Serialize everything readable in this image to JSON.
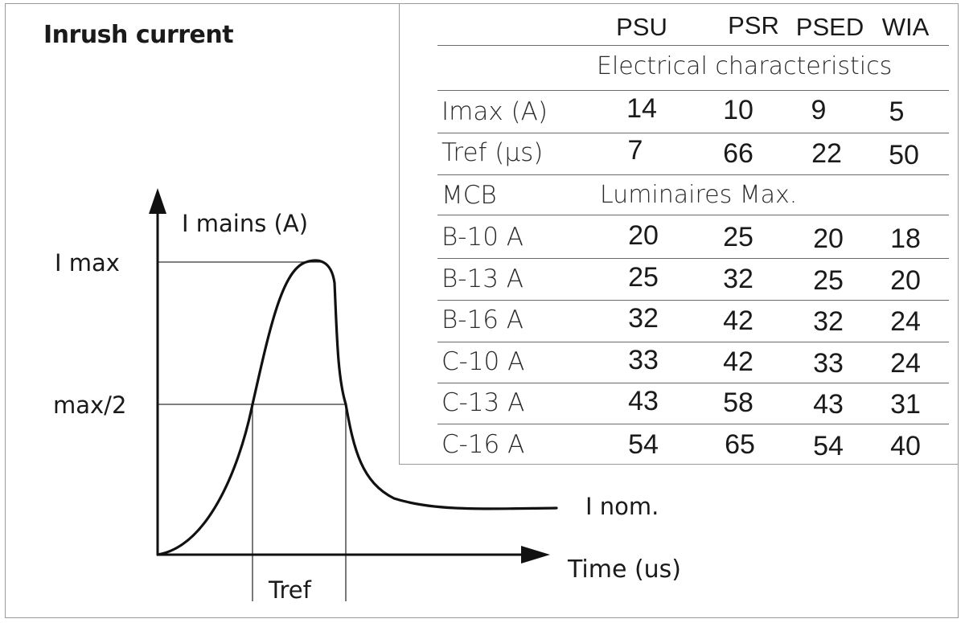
{
  "title": "Inrush current",
  "diagram": {
    "y_axis_label": "I mains (A)",
    "x_axis_label": "Time (us)",
    "imax_label": "I max",
    "half_label": "max/2",
    "nominal_label": "I nom.",
    "tref_label": "Tref"
  },
  "table": {
    "columns": [
      "PSU",
      "PSR",
      "PSED",
      "WIA"
    ],
    "section_electrical": "Electrical characteristics",
    "electrical_rows": [
      {
        "label": "Imax (A)",
        "values": [
          "14",
          "10",
          "9",
          "5"
        ]
      },
      {
        "label": "Tref (µs)",
        "values": [
          "7",
          "66",
          "22",
          "50"
        ]
      }
    ],
    "mcb_label": "MCB",
    "section_luminaires": "Luminaires Max.",
    "mcb_rows": [
      {
        "label": "B-10 A",
        "values": [
          "20",
          "25",
          "20",
          "18"
        ]
      },
      {
        "label": "B-13 A",
        "values": [
          "25",
          "32",
          "25",
          "20"
        ]
      },
      {
        "label": "B-16 A",
        "values": [
          "32",
          "42",
          "32",
          "24"
        ]
      },
      {
        "label": "C-10 A",
        "values": [
          "33",
          "42",
          "33",
          "24"
        ]
      },
      {
        "label": "C-13 A",
        "values": [
          "43",
          "58",
          "43",
          "31"
        ]
      },
      {
        "label": "C-16 A",
        "values": [
          "54",
          "65",
          "54",
          "40"
        ]
      }
    ]
  }
}
